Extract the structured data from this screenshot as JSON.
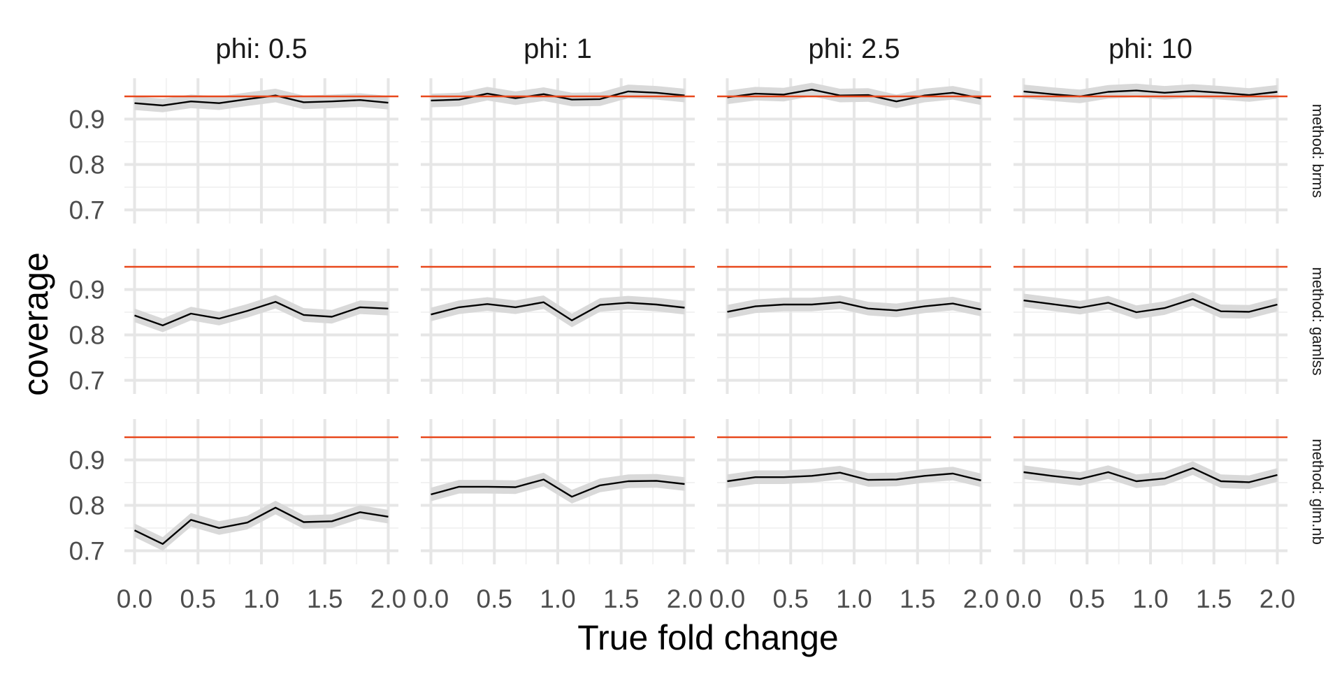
{
  "chart_data": {
    "type": "line",
    "xlabel": "True fold change",
    "ylabel": "coverage",
    "reference_value": 0.95,
    "x": [
      0.0,
      0.2222,
      0.4444,
      0.6667,
      0.8889,
      1.1111,
      1.3333,
      1.5556,
      1.7778,
      2.0
    ],
    "xlim": [
      -0.08,
      2.08
    ],
    "ylim": [
      0.67,
      0.99
    ],
    "x_ticks": [
      0.0,
      0.5,
      1.0,
      1.5,
      2.0
    ],
    "x_tick_labels": [
      "0.0",
      "0.5",
      "1.0",
      "1.5",
      "2.0"
    ],
    "y_ticks": [
      0.7,
      0.8,
      0.9
    ],
    "y_tick_labels": [
      "0.7",
      "0.8",
      "0.9"
    ],
    "band_halfwidth": 0.015,
    "grid": true,
    "columns": [
      {
        "label": "phi: 0.5"
      },
      {
        "label": "phi: 1"
      },
      {
        "label": "phi: 2.5"
      },
      {
        "label": "phi: 10"
      }
    ],
    "rows": [
      {
        "label": "method: brms"
      },
      {
        "label": "method: gamlss"
      },
      {
        "label": "method: glm.nb"
      }
    ],
    "panels": [
      [
        [
          0.935,
          0.93,
          0.939,
          0.935,
          0.944,
          0.952,
          0.937,
          0.939,
          0.942,
          0.936
        ],
        [
          0.941,
          0.943,
          0.956,
          0.946,
          0.955,
          0.943,
          0.944,
          0.961,
          0.958,
          0.952
        ],
        [
          0.948,
          0.956,
          0.954,
          0.965,
          0.952,
          0.953,
          0.939,
          0.952,
          0.958,
          0.946
        ],
        [
          0.961,
          0.955,
          0.95,
          0.96,
          0.963,
          0.958,
          0.962,
          0.958,
          0.953,
          0.96
        ]
      ],
      [
        [
          0.843,
          0.821,
          0.847,
          0.836,
          0.853,
          0.873,
          0.844,
          0.84,
          0.861,
          0.858
        ],
        [
          0.845,
          0.861,
          0.868,
          0.861,
          0.872,
          0.832,
          0.866,
          0.871,
          0.867,
          0.86
        ],
        [
          0.851,
          0.863,
          0.867,
          0.867,
          0.872,
          0.858,
          0.854,
          0.863,
          0.869,
          0.856
        ],
        [
          0.876,
          0.868,
          0.86,
          0.871,
          0.85,
          0.859,
          0.879,
          0.852,
          0.851,
          0.867
        ]
      ],
      [
        [
          0.745,
          0.715,
          0.768,
          0.75,
          0.762,
          0.795,
          0.763,
          0.765,
          0.785,
          0.775
        ],
        [
          0.824,
          0.841,
          0.841,
          0.84,
          0.857,
          0.819,
          0.844,
          0.853,
          0.854,
          0.847
        ],
        [
          0.853,
          0.862,
          0.862,
          0.865,
          0.872,
          0.856,
          0.857,
          0.865,
          0.87,
          0.855
        ],
        [
          0.873,
          0.865,
          0.858,
          0.873,
          0.853,
          0.859,
          0.882,
          0.853,
          0.851,
          0.867
        ]
      ]
    ],
    "colors": {
      "line": "#000000",
      "band": "#d9d9d9",
      "reference": "#e8481c",
      "grid_major": "#e6e6e6",
      "grid_minor": "#f2f2f2",
      "background": "#ffffff"
    }
  }
}
